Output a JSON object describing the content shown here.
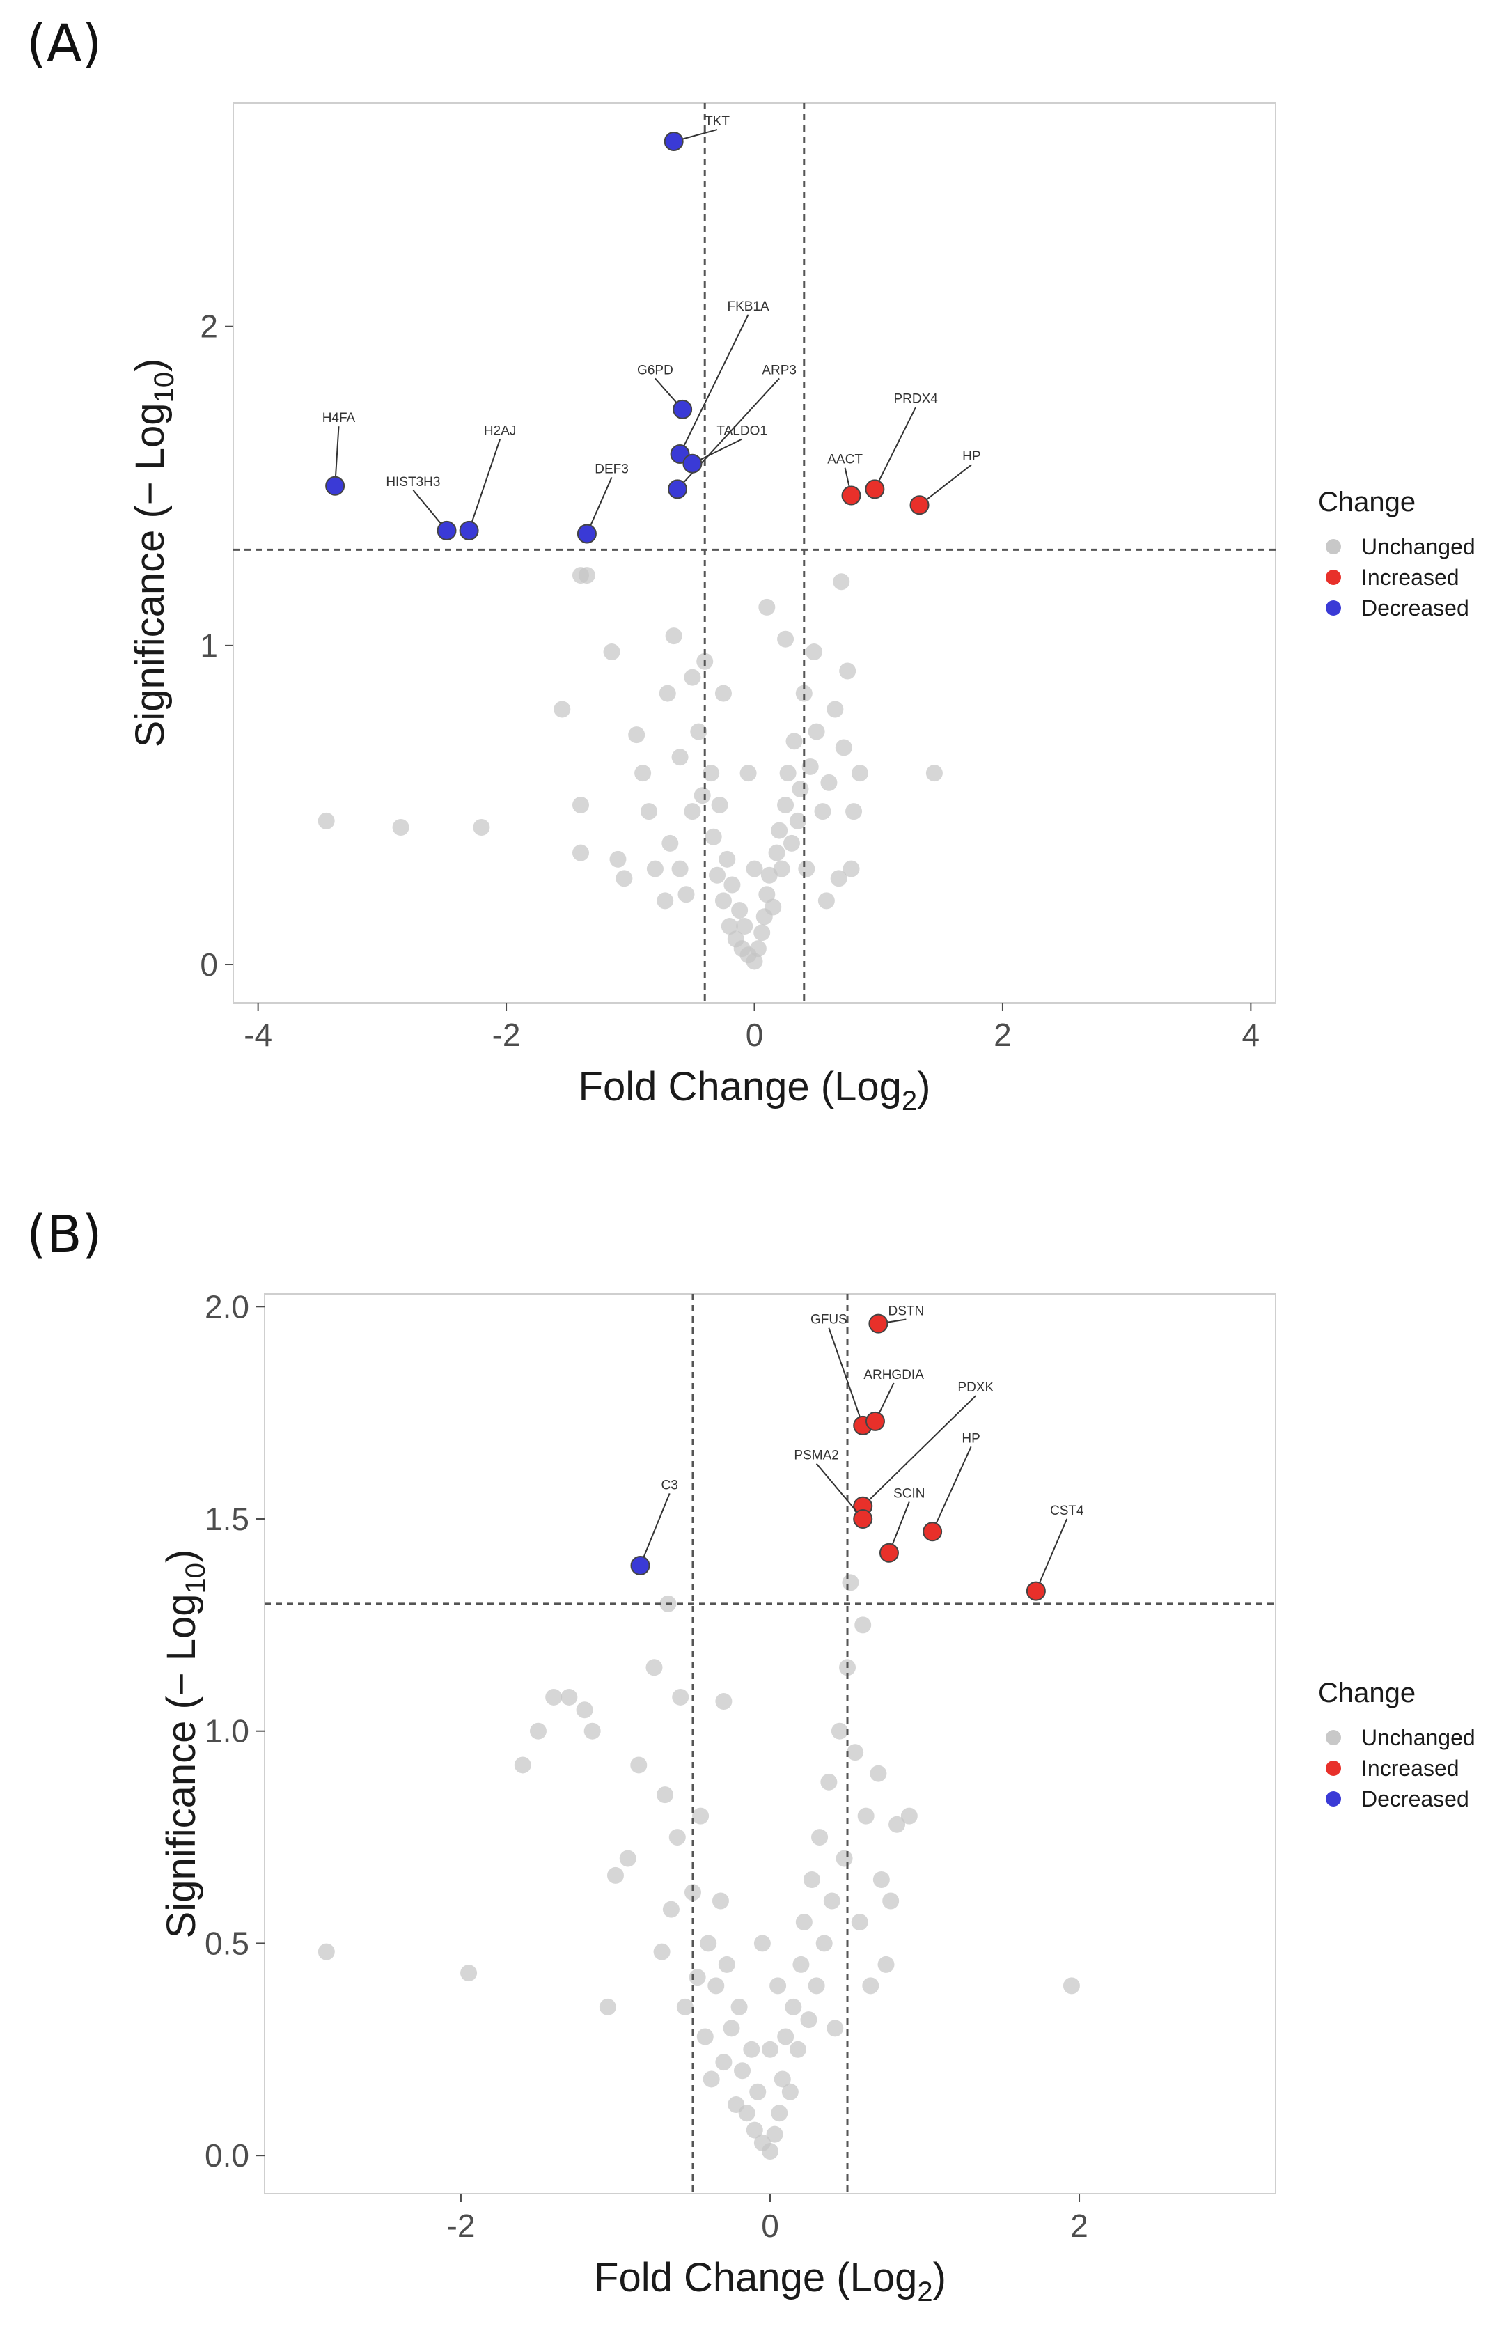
{
  "chart_data": [
    {
      "panel": "(A)",
      "type": "scatter",
      "title": "",
      "xlabel": "Fold Change (Log2)",
      "xlabel_parts": [
        "Fold Change (Log",
        "2",
        ")"
      ],
      "ylabel": "Significance (− Log10)",
      "ylabel_parts": [
        "Significance (− Log",
        "10",
        ")"
      ],
      "xlim": [
        -4.2,
        4.2
      ],
      "ylim": [
        -0.12,
        2.7
      ],
      "xticks": [
        -4,
        -2,
        0,
        2,
        4
      ],
      "xtick_labels": [
        "-4",
        "-2",
        "0",
        "2",
        "4"
      ],
      "yticks": [
        0,
        1,
        2
      ],
      "ytick_labels": [
        "0",
        "1",
        "2"
      ],
      "thresholds": {
        "fc": [
          -0.4,
          0.4
        ],
        "significance": 1.3
      },
      "legend": {
        "title": "Change",
        "placement": "right",
        "entries": [
          {
            "label": "Unchanged",
            "color": "#c8c8c8"
          },
          {
            "label": "Increased",
            "color": "#e8302a"
          },
          {
            "label": "Decreased",
            "color": "#3a3ad6"
          }
        ]
      },
      "highlighted": [
        {
          "gene": "TKT",
          "x": -0.65,
          "y": 2.58,
          "change": "Decreased",
          "lx": -0.3,
          "ly": 2.63
        },
        {
          "gene": "FKB1A",
          "x": -0.6,
          "y": 1.6,
          "change": "Decreased",
          "lx": -0.05,
          "ly": 2.05
        },
        {
          "gene": "G6PD",
          "x": -0.58,
          "y": 1.74,
          "change": "Decreased",
          "lx": -0.8,
          "ly": 1.85
        },
        {
          "gene": "ARP3",
          "x": -0.62,
          "y": 1.49,
          "change": "Decreased",
          "lx": 0.2,
          "ly": 1.85
        },
        {
          "gene": "TALDO1",
          "x": -0.5,
          "y": 1.57,
          "change": "Decreased",
          "lx": -0.1,
          "ly": 1.66
        },
        {
          "gene": "H4FA",
          "x": -3.38,
          "y": 1.5,
          "change": "Decreased",
          "lx": -3.35,
          "ly": 1.7
        },
        {
          "gene": "H2AJ",
          "x": -2.3,
          "y": 1.36,
          "change": "Decreased",
          "lx": -2.05,
          "ly": 1.66
        },
        {
          "gene": "HIST3H3",
          "x": -2.48,
          "y": 1.36,
          "change": "Decreased",
          "lx": -2.75,
          "ly": 1.5
        },
        {
          "gene": "DEF3",
          "x": -1.35,
          "y": 1.35,
          "change": "Decreased",
          "lx": -1.15,
          "ly": 1.54
        },
        {
          "gene": "PRDX4",
          "x": 0.97,
          "y": 1.49,
          "change": "Increased",
          "lx": 1.3,
          "ly": 1.76
        },
        {
          "gene": "AACT",
          "x": 0.78,
          "y": 1.47,
          "change": "Increased",
          "lx": 0.73,
          "ly": 1.57
        },
        {
          "gene": "HP",
          "x": 1.33,
          "y": 1.44,
          "change": "Increased",
          "lx": 1.75,
          "ly": 1.58
        }
      ],
      "unchanged_sample": [
        [
          -3.45,
          0.45
        ],
        [
          -2.85,
          0.43
        ],
        [
          -2.2,
          0.43
        ],
        [
          -1.55,
          0.8
        ],
        [
          -1.4,
          0.5
        ],
        [
          -1.4,
          0.35
        ],
        [
          -1.4,
          1.22
        ],
        [
          -1.35,
          1.22
        ],
        [
          -1.15,
          0.98
        ],
        [
          -1.1,
          0.33
        ],
        [
          -1.05,
          0.27
        ],
        [
          -0.95,
          0.72
        ],
        [
          -0.9,
          0.6
        ],
        [
          -0.85,
          0.48
        ],
        [
          -0.8,
          0.3
        ],
        [
          -0.72,
          0.2
        ],
        [
          -0.7,
          0.85
        ],
        [
          -0.68,
          0.38
        ],
        [
          -0.65,
          1.03
        ],
        [
          -0.6,
          0.65
        ],
        [
          -0.6,
          0.3
        ],
        [
          -0.55,
          0.22
        ],
        [
          -0.5,
          0.48
        ],
        [
          -0.5,
          0.9
        ],
        [
          -0.45,
          0.73
        ],
        [
          -0.42,
          0.53
        ],
        [
          -0.4,
          0.95
        ],
        [
          -0.35,
          0.6
        ],
        [
          -0.33,
          0.4
        ],
        [
          -0.3,
          0.28
        ],
        [
          -0.28,
          0.5
        ],
        [
          -0.25,
          0.2
        ],
        [
          -0.22,
          0.33
        ],
        [
          -0.2,
          0.12
        ],
        [
          -0.18,
          0.25
        ],
        [
          -0.15,
          0.08
        ],
        [
          -0.12,
          0.17
        ],
        [
          -0.1,
          0.05
        ],
        [
          -0.08,
          0.12
        ],
        [
          -0.05,
          0.03
        ],
        [
          0.0,
          0.01
        ],
        [
          0.03,
          0.05
        ],
        [
          0.06,
          0.1
        ],
        [
          0.08,
          0.15
        ],
        [
          0.1,
          0.22
        ],
        [
          0.12,
          0.28
        ],
        [
          0.15,
          0.18
        ],
        [
          0.18,
          0.35
        ],
        [
          0.2,
          0.42
        ],
        [
          0.22,
          0.3
        ],
        [
          0.25,
          0.5
        ],
        [
          0.27,
          0.6
        ],
        [
          0.3,
          0.38
        ],
        [
          0.32,
          0.7
        ],
        [
          0.35,
          0.45
        ],
        [
          0.37,
          0.55
        ],
        [
          0.4,
          0.85
        ],
        [
          0.42,
          0.3
        ],
        [
          0.45,
          0.62
        ],
        [
          0.48,
          0.98
        ],
        [
          0.5,
          0.73
        ],
        [
          0.55,
          0.48
        ],
        [
          0.58,
          0.2
        ],
        [
          0.6,
          0.57
        ],
        [
          0.65,
          0.8
        ],
        [
          0.68,
          0.27
        ],
        [
          0.7,
          1.2
        ],
        [
          0.72,
          0.68
        ],
        [
          0.75,
          0.92
        ],
        [
          0.78,
          0.3
        ],
        [
          0.8,
          0.48
        ],
        [
          0.85,
          0.6
        ],
        [
          0.1,
          1.12
        ],
        [
          0.25,
          1.02
        ],
        [
          -0.05,
          0.6
        ],
        [
          0.0,
          0.3
        ],
        [
          -0.25,
          0.85
        ],
        [
          1.45,
          0.6
        ]
      ]
    },
    {
      "panel": "(B)",
      "type": "scatter",
      "title": "",
      "xlabel": "Fold Change (Log2)",
      "xlabel_parts": [
        "Fold Change (Log",
        "2",
        ")"
      ],
      "ylabel": "Significance (− Log10)",
      "ylabel_parts": [
        "Significance (− Log",
        "10",
        ")"
      ],
      "xlim": [
        -3.27,
        3.27
      ],
      "ylim": [
        -0.09,
        2.03
      ],
      "xticks": [
        -2,
        0,
        2
      ],
      "xtick_labels": [
        "-2",
        "0",
        "2"
      ],
      "yticks": [
        0.0,
        0.5,
        1.0,
        1.5,
        2.0
      ],
      "ytick_labels": [
        "0.0",
        "0.5",
        "1.0",
        "1.5",
        "2.0"
      ],
      "thresholds": {
        "fc": [
          -0.5,
          0.5
        ],
        "significance": 1.3
      },
      "legend": {
        "title": "Change",
        "placement": "right",
        "entries": [
          {
            "label": "Unchanged",
            "color": "#c8c8c8"
          },
          {
            "label": "Increased",
            "color": "#e8302a"
          },
          {
            "label": "Decreased",
            "color": "#3a3ad6"
          }
        ]
      },
      "highlighted": [
        {
          "gene": "DSTN",
          "x": 0.7,
          "y": 1.96,
          "change": "Increased",
          "lx": 0.88,
          "ly": 1.98
        },
        {
          "gene": "GFUS",
          "x": 0.6,
          "y": 1.72,
          "change": "Increased",
          "lx": 0.38,
          "ly": 1.96
        },
        {
          "gene": "ARHGDIA",
          "x": 0.68,
          "y": 1.73,
          "change": "Increased",
          "lx": 0.8,
          "ly": 1.83
        },
        {
          "gene": "PDXK",
          "x": 0.6,
          "y": 1.53,
          "change": "Increased",
          "lx": 1.33,
          "ly": 1.8
        },
        {
          "gene": "PSMA2",
          "x": 0.6,
          "y": 1.5,
          "change": "Increased",
          "lx": 0.3,
          "ly": 1.64
        },
        {
          "gene": "HP",
          "x": 1.05,
          "y": 1.47,
          "change": "Increased",
          "lx": 1.3,
          "ly": 1.68
        },
        {
          "gene": "SCIN",
          "x": 0.77,
          "y": 1.42,
          "change": "Increased",
          "lx": 0.9,
          "ly": 1.55
        },
        {
          "gene": "CST4",
          "x": 1.72,
          "y": 1.33,
          "change": "Increased",
          "lx": 1.92,
          "ly": 1.51
        },
        {
          "gene": "C3",
          "x": -0.84,
          "y": 1.39,
          "change": "Decreased",
          "lx": -0.65,
          "ly": 1.57
        }
      ],
      "unchanged_sample": [
        [
          -2.87,
          0.48
        ],
        [
          -1.95,
          0.43
        ],
        [
          -1.6,
          0.92
        ],
        [
          -1.5,
          1.0
        ],
        [
          -1.4,
          1.08
        ],
        [
          -1.3,
          1.08
        ],
        [
          -1.2,
          1.05
        ],
        [
          -1.15,
          1.0
        ],
        [
          -1.05,
          0.35
        ],
        [
          -1.0,
          0.66
        ],
        [
          -0.92,
          0.7
        ],
        [
          -0.85,
          0.92
        ],
        [
          -0.75,
          1.15
        ],
        [
          -0.7,
          0.48
        ],
        [
          -0.68,
          0.85
        ],
        [
          -0.66,
          1.3
        ],
        [
          -0.64,
          0.58
        ],
        [
          -0.6,
          0.75
        ],
        [
          -0.58,
          1.08
        ],
        [
          -0.55,
          0.35
        ],
        [
          -0.5,
          0.62
        ],
        [
          -0.47,
          0.42
        ],
        [
          -0.45,
          0.8
        ],
        [
          -0.42,
          0.28
        ],
        [
          -0.4,
          0.5
        ],
        [
          -0.38,
          0.18
        ],
        [
          -0.35,
          0.4
        ],
        [
          -0.32,
          0.6
        ],
        [
          -0.3,
          0.22
        ],
        [
          -0.28,
          0.45
        ],
        [
          -0.25,
          0.3
        ],
        [
          -0.22,
          0.12
        ],
        [
          -0.2,
          0.35
        ],
        [
          -0.18,
          0.2
        ],
        [
          -0.15,
          0.1
        ],
        [
          -0.12,
          0.25
        ],
        [
          -0.1,
          0.06
        ],
        [
          -0.08,
          0.15
        ],
        [
          -0.05,
          0.03
        ],
        [
          0.0,
          0.01
        ],
        [
          0.03,
          0.05
        ],
        [
          0.06,
          0.1
        ],
        [
          0.08,
          0.18
        ],
        [
          0.1,
          0.28
        ],
        [
          0.13,
          0.15
        ],
        [
          0.15,
          0.35
        ],
        [
          0.18,
          0.25
        ],
        [
          0.2,
          0.45
        ],
        [
          0.22,
          0.55
        ],
        [
          0.25,
          0.32
        ],
        [
          0.27,
          0.65
        ],
        [
          0.3,
          0.4
        ],
        [
          0.32,
          0.75
        ],
        [
          0.35,
          0.5
        ],
        [
          0.38,
          0.88
        ],
        [
          0.4,
          0.6
        ],
        [
          0.42,
          0.3
        ],
        [
          0.45,
          1.0
        ],
        [
          0.48,
          0.7
        ],
        [
          0.5,
          1.15
        ],
        [
          0.52,
          1.35
        ],
        [
          0.55,
          0.95
        ],
        [
          0.58,
          0.55
        ],
        [
          0.6,
          1.25
        ],
        [
          0.62,
          0.8
        ],
        [
          0.65,
          0.4
        ],
        [
          0.7,
          0.9
        ],
        [
          0.72,
          0.65
        ],
        [
          0.75,
          0.45
        ],
        [
          0.78,
          0.6
        ],
        [
          0.82,
          0.78
        ],
        [
          0.9,
          0.8
        ],
        [
          0.05,
          0.4
        ],
        [
          -0.05,
          0.5
        ],
        [
          0.0,
          0.25
        ],
        [
          -0.3,
          1.07
        ],
        [
          1.95,
          0.4
        ]
      ]
    }
  ]
}
